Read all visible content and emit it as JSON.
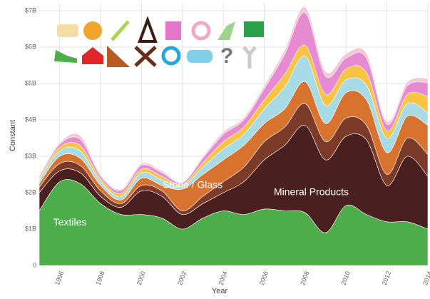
{
  "chart_data": {
    "type": "stacked-area",
    "x_label": "Year",
    "y_label": "Constant",
    "x": [
      1995,
      1996,
      1997,
      1998,
      1999,
      2000,
      2001,
      2002,
      2003,
      2004,
      2005,
      2006,
      2007,
      2008,
      2009,
      2010,
      2011,
      2012,
      2013,
      2014
    ],
    "xlim": [
      1995,
      2014
    ],
    "xticks": [
      1996,
      1998,
      2000,
      2002,
      2004,
      2006,
      2008,
      2010,
      2012,
      2014
    ],
    "ylim": [
      0,
      7
    ],
    "yticks": [
      0,
      {
        "value": 1,
        "label": "$1B"
      },
      {
        "value": 2,
        "label": "$2B"
      },
      {
        "value": 3,
        "label": "$3B"
      },
      {
        "value": 4,
        "label": "$4B"
      },
      {
        "value": 5,
        "label": "$5B"
      },
      {
        "value": 6,
        "label": "$6B"
      },
      {
        "value": 7,
        "label": "$7B"
      }
    ],
    "grid": true,
    "series": [
      {
        "name": "Textiles",
        "color": "#4cad4a",
        "values": [
          1.5,
          2.3,
          2.25,
          1.7,
          1.4,
          1.4,
          1.3,
          1.0,
          1.3,
          1.5,
          1.4,
          1.55,
          1.5,
          1.45,
          0.9,
          1.65,
          1.4,
          1.2,
          1.2,
          1.0
        ]
      },
      {
        "name": "Mineral Products",
        "color": "#4a1f1f",
        "values": [
          0.5,
          0.3,
          0.3,
          0.2,
          0.2,
          0.65,
          0.6,
          0.4,
          0.4,
          0.5,
          0.9,
          1.35,
          1.8,
          2.4,
          2.0,
          1.9,
          2.05,
          1.0,
          1.8,
          1.45
        ]
      },
      {
        "color": "#7b3b28",
        "values": [
          0.15,
          0.2,
          0.2,
          0.15,
          0.1,
          0.15,
          0.15,
          0.1,
          0.2,
          0.3,
          0.4,
          0.5,
          0.5,
          0.6,
          0.5,
          0.5,
          0.4,
          0.3,
          0.5,
          0.6
        ]
      },
      {
        "name": "Stone / Glass",
        "color": "#d8722f",
        "values": [
          0.1,
          0.2,
          0.2,
          0.15,
          0.1,
          0.2,
          0.15,
          0.6,
          0.6,
          0.6,
          0.6,
          0.5,
          0.5,
          0.6,
          0.5,
          0.7,
          0.7,
          0.6,
          0.6,
          0.8
        ]
      },
      {
        "color": "#a7dbe6",
        "values": [
          0.1,
          0.15,
          0.2,
          0.1,
          0.1,
          0.15,
          0.15,
          0.08,
          0.2,
          0.3,
          0.3,
          0.4,
          0.6,
          0.7,
          0.5,
          0.35,
          0.4,
          0.4,
          0.35,
          0.35
        ]
      },
      {
        "color": "#f7c443",
        "values": [
          0.05,
          0.1,
          0.15,
          0.08,
          0.08,
          0.1,
          0.1,
          0.05,
          0.12,
          0.2,
          0.2,
          0.25,
          0.35,
          0.3,
          0.3,
          0.3,
          0.35,
          0.2,
          0.25,
          0.45
        ]
      },
      {
        "color": "#e68ad2",
        "values": [
          0.05,
          0.08,
          0.17,
          0.08,
          0.08,
          0.1,
          0.1,
          0.05,
          0.13,
          0.2,
          0.2,
          0.3,
          0.55,
          0.9,
          0.5,
          0.3,
          0.4,
          0.18,
          0.24,
          0.37
        ]
      },
      {
        "color": "#f5c6d6",
        "values": [
          0.03,
          0.04,
          0.1,
          0.04,
          0.04,
          0.05,
          0.05,
          0.02,
          0.05,
          0.07,
          0.06,
          0.09,
          0.12,
          0.15,
          0.13,
          0.12,
          0.12,
          0.08,
          0.1,
          0.12
        ]
      }
    ]
  }
}
